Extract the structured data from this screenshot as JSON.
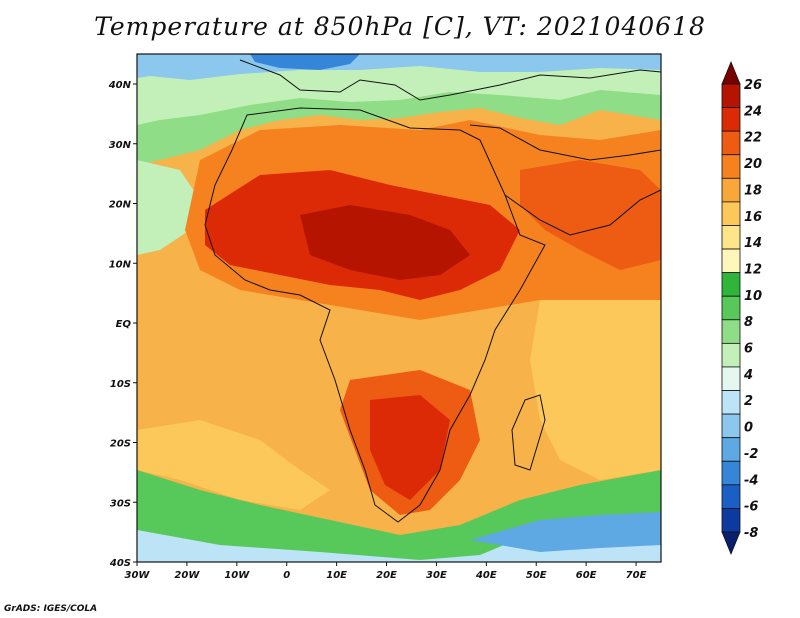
{
  "title": "Temperature at 850hPa [C], VT: 2021040618",
  "credit": "GrADS: IGES/COLA",
  "map": {
    "projection": "lat-lon",
    "lon_range": [
      -30,
      75
    ],
    "lat_range": [
      -40,
      45
    ],
    "x_ticks": [
      "30W",
      "20W",
      "10W",
      "0",
      "10E",
      "20E",
      "30E",
      "40E",
      "50E",
      "60E",
      "70E"
    ],
    "y_ticks": [
      "40N",
      "30N",
      "20N",
      "10N",
      "EQ",
      "10S",
      "20S",
      "30S",
      "40S"
    ],
    "field": "850 hPa temperature",
    "units": "C",
    "overlay": "coastlines and country borders"
  },
  "colorbar": {
    "orientation": "vertical",
    "labels": [
      "26",
      "24",
      "22",
      "20",
      "18",
      "16",
      "14",
      "12",
      "10",
      "8",
      "6",
      "4",
      "2",
      "0",
      "-2",
      "-4",
      "-6",
      "-8"
    ],
    "colors": [
      "#7a0000",
      "#b51400",
      "#dd2a06",
      "#ee5b12",
      "#f5821f",
      "#f9a73a",
      "#fcc85a",
      "#fde58a",
      "#fff6bc",
      "#2fb63a",
      "#57c85a",
      "#8fdd86",
      "#c3efb8",
      "#e4f8f0",
      "#bde4f6",
      "#8cc7ee",
      "#5ea8e3",
      "#3586d8",
      "#1a5fc5",
      "#0c3aa0",
      "#071f6e"
    ]
  }
}
